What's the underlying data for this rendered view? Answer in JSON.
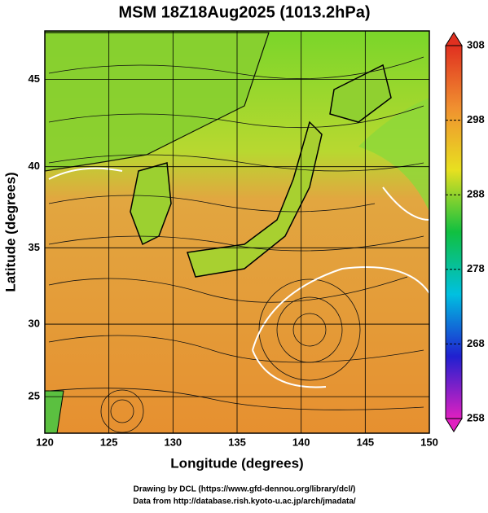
{
  "chart_data": {
    "type": "map",
    "title": "MSM 18Z18Aug2025 (1013.2hPa)",
    "x_label": "Longitude (degrees)",
    "y_label": "Latitude  (degrees)",
    "xlim": [
      120,
      150
    ],
    "xticks": [
      120,
      125,
      130,
      135,
      140,
      145,
      150
    ],
    "ylim": [
      22.4,
      47.6
    ],
    "yticks": [
      25,
      30,
      35,
      40,
      45
    ],
    "projection": "mercator",
    "grid": true,
    "colorbar": {
      "lim": [
        258,
        308
      ],
      "ticks": [
        258,
        268,
        278,
        288,
        298,
        308
      ],
      "colors": [
        "#e020c0",
        "#2020d0",
        "#00c0e0",
        "#10c040",
        "#e8e020",
        "#f09030",
        "#e03020"
      ]
    },
    "footer": [
      "Drawing by DCL (https://www.gfd-dennou.org/library/dcl/)",
      "Data from http://database.rish.kyoto-u.ac.jp/arch/jmadata/"
    ]
  }
}
